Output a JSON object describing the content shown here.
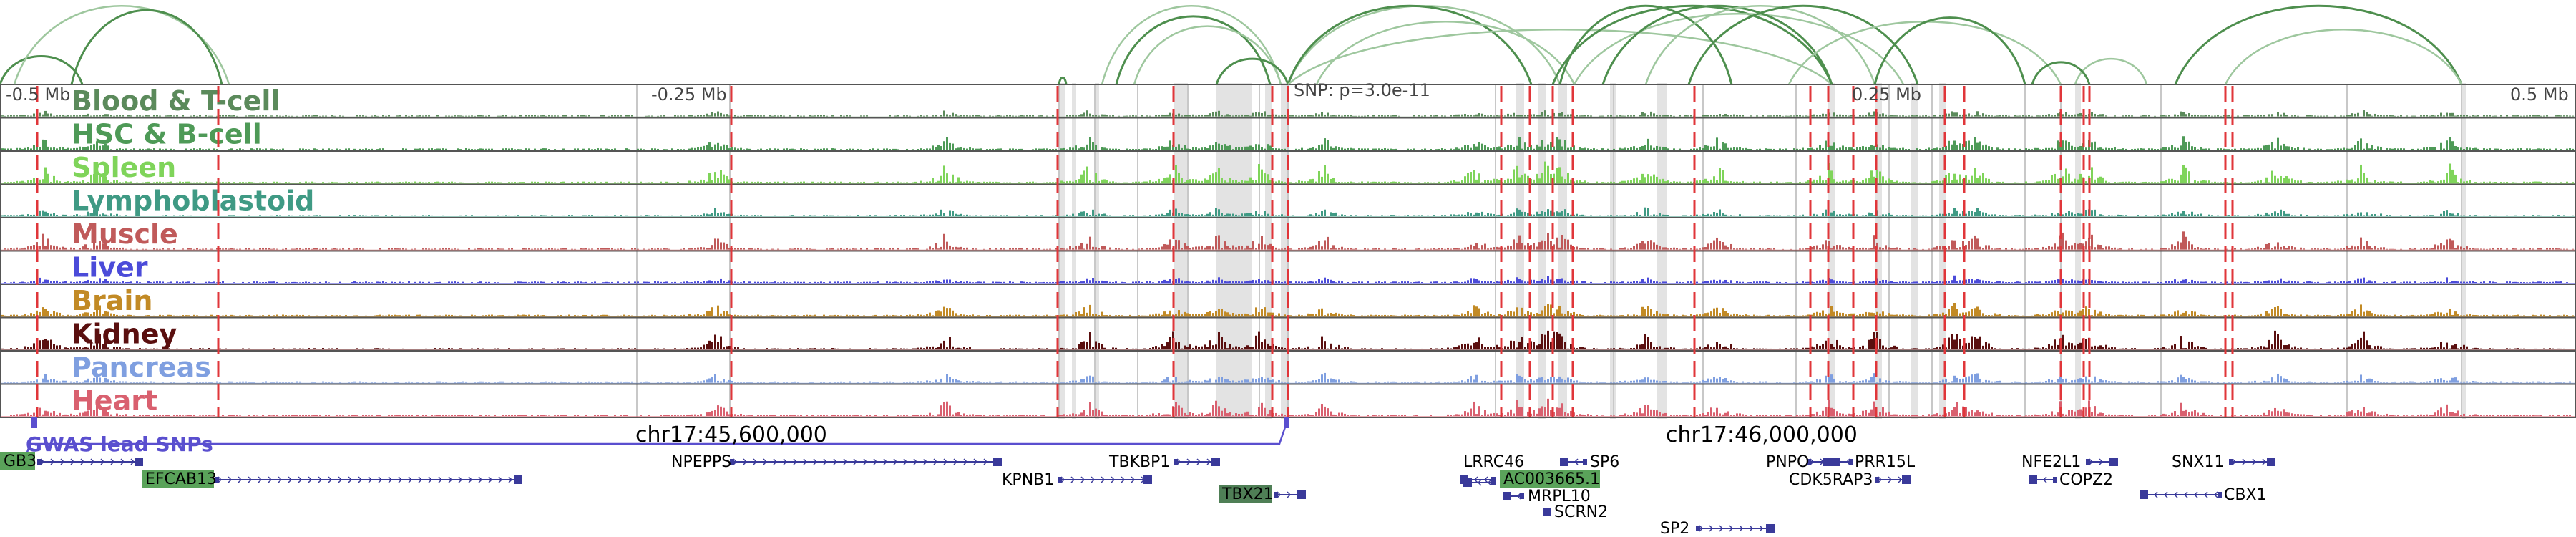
{
  "colors": {
    "loop_green": "#4e8f4e",
    "loop_light": "#9ec79e",
    "gwas_line": "#e0363a",
    "snp_link": "#5a4fcf",
    "shade": "#d9d9d9",
    "gene_body": "#3a3a9a",
    "gene_highlight": "#5aa35a",
    "gene_highlight_dark": "#4f7f56"
  },
  "ruler": {
    "left": "-0.5 Mb",
    "left_mid": "-0.25 Mb",
    "snp": "SNP: p=3.0e-11",
    "right_mid": "0.25 Mb",
    "right": "0.5 Mb"
  },
  "tracks": [
    {
      "name": "Blood & T-cell",
      "color": "#5b8a5b"
    },
    {
      "name": "HSC & B-cell",
      "color": "#4e9a57"
    },
    {
      "name": "Spleen",
      "color": "#7fd45a"
    },
    {
      "name": "Lymphoblastoid",
      "color": "#3f9a84"
    },
    {
      "name": "Muscle",
      "color": "#c05a5a"
    },
    {
      "name": "Liver",
      "color": "#4b4bd9"
    },
    {
      "name": "Brain",
      "color": "#c28a25"
    },
    {
      "name": "Kidney",
      "color": "#5a0f0f"
    },
    {
      "name": "Pancreas",
      "color": "#7f9fe0"
    },
    {
      "name": "Heart",
      "color": "#d9606f"
    }
  ],
  "gwas_label": "GWAS lead SNPs",
  "coordinates": {
    "left": "chr17:45,600,000",
    "right": "chr17:46,000,000"
  },
  "genes": [
    {
      "name": "GB3",
      "highlight": true
    },
    {
      "name": "EFCAB13",
      "highlight": true
    },
    {
      "name": "NPEPPS",
      "highlight": false
    },
    {
      "name": "KPNB1",
      "highlight": false
    },
    {
      "name": "TBKBP1",
      "highlight": false
    },
    {
      "name": "TBX21",
      "highlight": true
    },
    {
      "name": "LRRC46",
      "highlight": false
    },
    {
      "name": "SP6",
      "highlight": false
    },
    {
      "name": "AC003665.1",
      "highlight": true
    },
    {
      "name": "MRPL10",
      "highlight": false
    },
    {
      "name": "SCRN2",
      "highlight": false
    },
    {
      "name": "SP2",
      "highlight": false
    },
    {
      "name": "PNPO",
      "highlight": false
    },
    {
      "name": "PRR15L",
      "highlight": false
    },
    {
      "name": "CDK5RAP3",
      "highlight": false
    },
    {
      "name": "NFE2L1",
      "highlight": false
    },
    {
      "name": "COPZ2",
      "highlight": false
    },
    {
      "name": "SNX11",
      "highlight": false
    },
    {
      "name": "CBX1",
      "highlight": false
    }
  ]
}
